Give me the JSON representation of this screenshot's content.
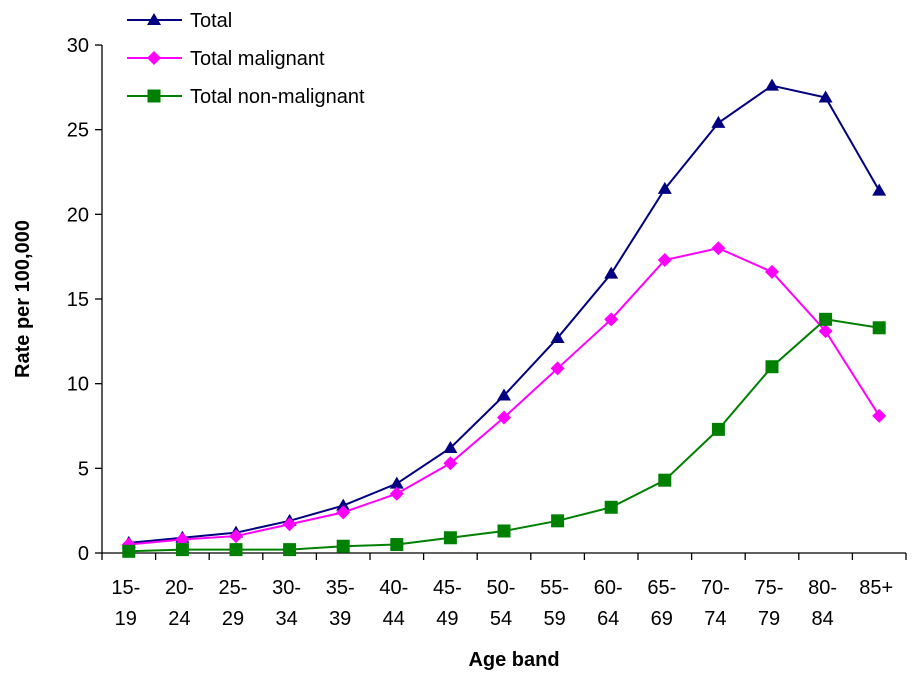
{
  "chart_data": {
    "type": "line",
    "title": "",
    "xlabel": "Age band",
    "ylabel": "Rate per 100,000",
    "ylim": [
      0,
      30
    ],
    "yticks": [
      0,
      5,
      10,
      15,
      20,
      25,
      30
    ],
    "grid": false,
    "legend_position": "top-left",
    "categories": [
      [
        "15-",
        "19"
      ],
      [
        "20-",
        "24"
      ],
      [
        "25-",
        "29"
      ],
      [
        "30-",
        "34"
      ],
      [
        "35-",
        "39"
      ],
      [
        "40-",
        "44"
      ],
      [
        "45-",
        "49"
      ],
      [
        "50-",
        "54"
      ],
      [
        "55-",
        "59"
      ],
      [
        "60-",
        "64"
      ],
      [
        "65-",
        "69"
      ],
      [
        "70-",
        "74"
      ],
      [
        "75-",
        "79"
      ],
      [
        "80-",
        "84"
      ],
      [
        "85+",
        ""
      ]
    ],
    "series": [
      {
        "name": "Total",
        "color": "#000080",
        "marker": "triangle",
        "values": [
          0.6,
          0.9,
          1.2,
          1.9,
          2.8,
          4.1,
          6.2,
          9.3,
          12.7,
          16.5,
          21.5,
          25.4,
          27.6,
          26.9,
          21.4
        ]
      },
      {
        "name": "Total malignant",
        "color": "#FF00FF",
        "marker": "diamond",
        "values": [
          0.5,
          0.8,
          1.0,
          1.7,
          2.4,
          3.5,
          5.3,
          8.0,
          10.9,
          13.8,
          17.3,
          18.0,
          16.6,
          13.1,
          8.1
        ]
      },
      {
        "name": "Total non-malignant",
        "color": "#008000",
        "marker": "square",
        "values": [
          0.1,
          0.2,
          0.2,
          0.2,
          0.4,
          0.5,
          0.9,
          1.3,
          1.9,
          2.7,
          4.3,
          7.3,
          11.0,
          13.8,
          13.3
        ]
      }
    ]
  }
}
